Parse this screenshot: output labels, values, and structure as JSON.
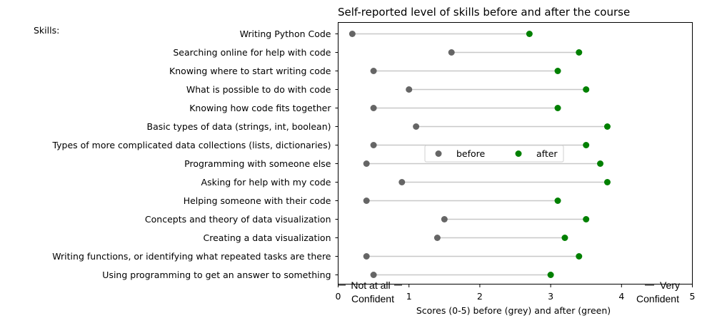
{
  "chart_data": {
    "type": "dumbbell",
    "title": "Self-reported level of skills before and after the course",
    "xlabel": "Scores (0-5) before (grey) and after (green)",
    "ylabel": "Skills:",
    "xlim": [
      0,
      5
    ],
    "x_ticks": [
      "0",
      "1",
      "2",
      "3",
      "4",
      "5"
    ],
    "x_annotations": {
      "left": [
        "Not at all",
        "Confident"
      ],
      "right": [
        "Very",
        "Confident"
      ]
    },
    "legend": {
      "placement": "center",
      "entries": [
        "before",
        "after"
      ]
    },
    "colors": {
      "before": "#555555",
      "after": "#008000",
      "connector": "#c8c8c8"
    },
    "grid": false,
    "categories": [
      "Writing Python Code",
      "Searching online for help with code",
      "Knowing where to start writing code",
      "What is possible to do with code",
      "Knowing how code fits together",
      "Basic types of data (strings, int, boolean)",
      "Types of more complicated data collections (lists, dictionaries)",
      "Programming with someone else",
      "Asking for help with my code",
      "Helping someone with their code",
      "Concepts and theory of data visualization",
      "Creating a data visualization",
      "Writing functions, or identifying what repeated tasks are there",
      "Using programming to get an answer to something"
    ],
    "series": [
      {
        "name": "before",
        "values": [
          0.2,
          1.6,
          0.5,
          1.0,
          0.5,
          1.1,
          0.5,
          0.4,
          0.9,
          0.4,
          1.5,
          1.4,
          0.4,
          0.5
        ]
      },
      {
        "name": "after",
        "values": [
          2.7,
          3.4,
          3.1,
          3.5,
          3.1,
          3.8,
          3.5,
          3.7,
          3.8,
          3.1,
          3.5,
          3.2,
          3.4,
          3.0
        ]
      }
    ]
  }
}
